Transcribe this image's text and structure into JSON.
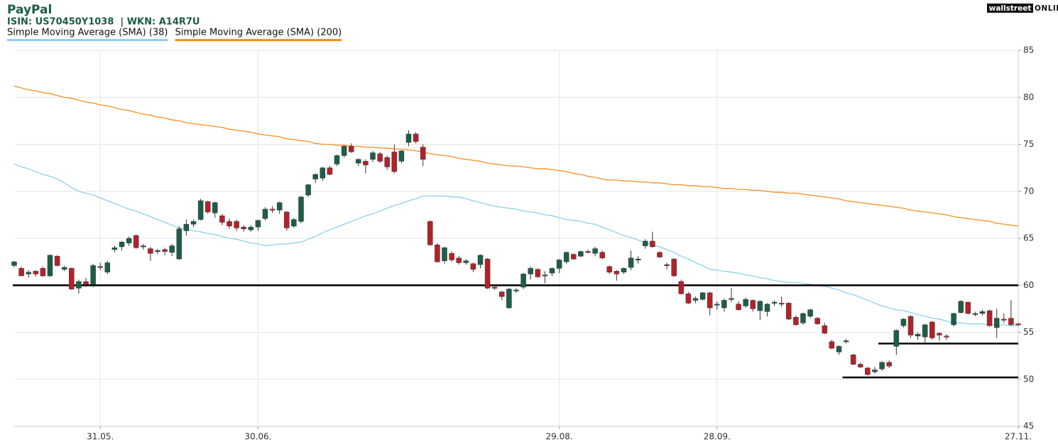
{
  "chart_data": {
    "type": "candlestick",
    "title": "PayPal",
    "subtitle": "ISIN: US70450Y1038  | WKN: A14R7U",
    "logo": {
      "brand": "wallstreet",
      "suffix": "ONLINE"
    },
    "grid": true,
    "y_axis_side": "right",
    "ylim": [
      45,
      85
    ],
    "yticks": [
      45,
      50,
      55,
      60,
      65,
      70,
      75,
      80,
      85
    ],
    "categories": [
      null,
      null,
      null,
      null,
      null,
      null,
      null,
      null,
      null,
      null,
      null,
      null,
      "31.05.",
      null,
      null,
      null,
      null,
      null,
      null,
      null,
      null,
      null,
      null,
      null,
      null,
      null,
      null,
      null,
      null,
      null,
      null,
      null,
      null,
      null,
      "30.06.",
      null,
      null,
      null,
      null,
      null,
      null,
      null,
      null,
      null,
      null,
      null,
      null,
      null,
      null,
      null,
      null,
      null,
      null,
      null,
      null,
      null,
      null,
      null,
      null,
      null,
      null,
      null,
      null,
      null,
      null,
      null,
      null,
      null,
      null,
      null,
      null,
      null,
      null,
      null,
      null,
      null,
      "29.08.",
      null,
      null,
      null,
      null,
      null,
      null,
      null,
      null,
      null,
      null,
      null,
      null,
      null,
      null,
      null,
      null,
      null,
      null,
      null,
      null,
      null,
      "28.09.",
      null,
      null,
      null,
      null,
      null,
      null,
      null,
      null,
      null,
      null,
      null,
      null,
      null,
      null,
      null,
      null,
      null,
      null,
      null,
      null,
      null,
      null,
      null,
      null,
      null,
      null,
      null,
      null,
      null,
      null,
      null,
      null,
      null,
      null,
      null,
      null,
      null,
      null,
      null,
      null,
      null,
      "27.11."
    ],
    "series": [
      {
        "type": "candlestick",
        "up_color": "#1d5e49",
        "down_color": "#b3222a",
        "open": [
          62.1,
          61.8,
          61.2,
          61.5,
          61.8,
          61.0,
          63.1,
          61.7,
          61.8,
          59.7,
          60.4,
          60.1,
          62.0,
          61.4,
          63.8,
          64.1,
          64.5,
          65.3,
          64.1,
          63.9,
          63.6,
          63.8,
          63.5,
          62.8,
          65.8,
          66.5,
          67.0,
          68.9,
          67.7,
          67.4,
          66.8,
          66.8,
          66.2,
          65.9,
          66.2,
          67.1,
          68.1,
          68.0,
          67.8,
          66.3,
          66.8,
          69.6,
          71.3,
          71.4,
          72.5,
          72.9,
          73.8,
          74.8,
          73.0,
          73.2,
          73.4,
          74.0,
          73.6,
          74.2,
          73.2,
          75.2,
          76.1,
          74.7,
          66.8,
          64.3,
          62.6,
          63.4,
          62.9,
          62.4,
          62.3,
          62.2,
          62.8,
          59.8,
          59.3,
          57.6,
          59.4,
          59.8,
          61.2,
          61.7,
          61.0,
          61.3,
          61.8,
          62.5,
          63.3,
          63.1,
          63.6,
          63.4,
          63.5,
          62.0,
          61.5,
          61.4,
          61.9,
          62.7,
          64.2,
          64.7,
          63.5,
          62.2,
          62.8,
          60.4,
          59.1,
          58.4,
          58.5,
          59.2,
          57.9,
          57.6,
          58.6,
          58.0,
          57.8,
          58.4,
          57.3,
          57.2,
          58.1,
          58.1,
          58.1,
          56.6,
          56.0,
          56.7,
          56.5,
          55.7,
          54.0,
          52.9,
          54.0,
          52.6,
          51.6,
          51.2,
          50.8,
          51.1,
          51.8,
          53.5,
          55.7,
          56.7,
          54.6,
          54.5,
          56.1,
          54.9,
          54.6,
          55.8,
          57.1,
          58.2,
          56.9,
          57.0,
          57.3,
          55.5,
          56.4,
          56.5,
          55.9
        ],
        "high": [
          62.6,
          62.0,
          61.6,
          61.6,
          62.0,
          63.3,
          63.2,
          62.1,
          61.9,
          60.6,
          60.8,
          62.3,
          62.4,
          62.6,
          64.2,
          64.7,
          65.2,
          65.4,
          64.4,
          64.1,
          63.9,
          64.0,
          64.4,
          66.3,
          67.0,
          67.0,
          69.2,
          69.0,
          68.9,
          67.6,
          67.1,
          67.0,
          66.4,
          66.4,
          67.0,
          68.3,
          68.4,
          68.9,
          67.9,
          67.2,
          69.5,
          70.8,
          71.9,
          72.6,
          72.7,
          73.9,
          74.9,
          75.1,
          73.5,
          73.4,
          74.3,
          74.2,
          73.8,
          75.0,
          74.4,
          76.5,
          76.3,
          75.0,
          66.9,
          64.5,
          64.1,
          63.6,
          63.1,
          62.8,
          62.4,
          63.3,
          62.9,
          60.0,
          59.4,
          59.7,
          59.7,
          61.3,
          62.0,
          61.8,
          61.5,
          61.9,
          62.8,
          63.6,
          63.4,
          63.7,
          63.8,
          64.1,
          63.7,
          62.1,
          61.6,
          61.9,
          63.7,
          63.1,
          64.9,
          65.7,
          63.6,
          62.4,
          62.9,
          60.6,
          59.3,
          58.8,
          59.3,
          59.3,
          58.3,
          58.6,
          59.7,
          58.3,
          58.7,
          58.5,
          58.4,
          58.1,
          58.4,
          58.8,
          58.2,
          56.8,
          57.1,
          57.5,
          56.6,
          56.0,
          54.2,
          53.6,
          54.3,
          52.7,
          51.8,
          51.3,
          51.3,
          51.9,
          52.0,
          55.3,
          56.5,
          56.8,
          55.0,
          55.9,
          56.2,
          55.0,
          54.8,
          57.1,
          58.4,
          58.3,
          57.2,
          57.4,
          57.4,
          57.5,
          57.0,
          58.4,
          56.0
        ],
        "low": [
          61.9,
          61.0,
          60.8,
          60.9,
          60.9,
          60.9,
          62.0,
          61.5,
          59.5,
          59.1,
          59.8,
          59.8,
          61.6,
          61.2,
          63.5,
          63.7,
          64.2,
          63.9,
          63.8,
          62.6,
          63.3,
          63.2,
          63.1,
          62.7,
          65.3,
          66.2,
          66.9,
          67.6,
          67.2,
          66.4,
          66.0,
          65.8,
          65.7,
          65.7,
          65.8,
          66.9,
          67.7,
          67.6,
          65.8,
          66.1,
          66.6,
          69.4,
          70.9,
          71.1,
          71.7,
          72.7,
          73.6,
          74.1,
          72.7,
          71.9,
          73.1,
          73.0,
          72.3,
          71.9,
          73.0,
          74.8,
          75.1,
          72.7,
          64.2,
          62.4,
          62.3,
          62.5,
          62.2,
          62.2,
          61.4,
          61.8,
          59.6,
          59.5,
          58.4,
          57.5,
          59.2,
          59.6,
          60.6,
          60.8,
          60.2,
          61.0,
          61.3,
          62.3,
          62.7,
          63.0,
          63.4,
          63.1,
          62.8,
          61.2,
          60.5,
          61.2,
          61.6,
          62.3,
          63.9,
          64.0,
          62.9,
          61.7,
          60.9,
          59.0,
          58.0,
          58.1,
          58.4,
          56.8,
          57.4,
          57.2,
          58.2,
          57.3,
          57.6,
          57.2,
          56.3,
          56.7,
          57.8,
          57.7,
          56.3,
          55.7,
          55.8,
          56.5,
          55.8,
          54.8,
          53.2,
          52.6,
          53.8,
          51.5,
          51.2,
          50.4,
          50.6,
          50.9,
          51.2,
          52.6,
          55.5,
          54.4,
          54.2,
          53.8,
          54.2,
          54.1,
          54.2,
          55.6,
          57.0,
          56.9,
          56.7,
          56.8,
          55.6,
          54.4,
          56.0,
          55.7,
          55.7
        ],
        "close": [
          62.5,
          61.0,
          61.4,
          61.2,
          61.0,
          63.2,
          62.1,
          61.9,
          59.6,
          60.4,
          60.1,
          62.1,
          61.9,
          62.4,
          64.0,
          64.6,
          65.0,
          64.0,
          64.2,
          63.4,
          63.7,
          63.6,
          64.2,
          66.0,
          66.5,
          66.8,
          69.0,
          67.8,
          68.8,
          66.7,
          66.3,
          66.1,
          66.0,
          66.2,
          66.9,
          68.1,
          68.0,
          68.8,
          66.1,
          67.0,
          69.4,
          70.7,
          71.8,
          72.5,
          71.8,
          73.8,
          74.8,
          74.2,
          73.4,
          72.8,
          74.1,
          73.2,
          72.6,
          72.1,
          74.3,
          76.1,
          75.3,
          73.4,
          64.3,
          62.5,
          64.0,
          62.7,
          62.4,
          62.6,
          61.7,
          63.2,
          59.7,
          59.7,
          58.8,
          59.6,
          59.5,
          61.2,
          61.8,
          60.9,
          61.1,
          61.8,
          62.7,
          63.5,
          62.8,
          63.6,
          63.5,
          63.9,
          62.9,
          61.4,
          61.2,
          61.8,
          62.9,
          62.8,
          64.7,
          64.1,
          63.0,
          62.1,
          61.0,
          59.1,
          58.1,
          58.6,
          59.2,
          57.6,
          58.0,
          58.4,
          58.6,
          57.4,
          58.5,
          57.5,
          58.3,
          58.0,
          58.2,
          58.0,
          56.4,
          55.8,
          57.0,
          57.4,
          55.9,
          54.9,
          53.3,
          53.5,
          54.1,
          51.6,
          51.3,
          50.5,
          51.0,
          51.8,
          51.4,
          55.2,
          56.4,
          54.7,
          54.8,
          55.8,
          54.4,
          54.7,
          54.5,
          57.0,
          58.3,
          57.0,
          57.0,
          57.2,
          55.7,
          56.5,
          56.3,
          55.8,
          55.8
        ]
      },
      {
        "type": "line",
        "name": "Simple Moving Average (SMA) (38)",
        "color": "#8fcfea",
        "values": [
          72.9,
          72.6,
          72.4,
          72.1,
          71.8,
          71.6,
          71.3,
          70.9,
          70.4,
          70.0,
          69.8,
          69.6,
          69.3,
          69.0,
          68.7,
          68.4,
          68.1,
          67.9,
          67.6,
          67.3,
          67.0,
          66.7,
          66.4,
          66.1,
          66.0,
          65.8,
          65.7,
          65.5,
          65.4,
          65.2,
          65.0,
          64.9,
          64.7,
          64.5,
          64.4,
          64.2,
          64.3,
          64.4,
          64.4,
          64.5,
          64.6,
          64.9,
          65.2,
          65.6,
          65.9,
          66.2,
          66.5,
          66.8,
          67.1,
          67.4,
          67.6,
          67.9,
          68.2,
          68.5,
          68.7,
          69.0,
          69.2,
          69.5,
          69.5,
          69.5,
          69.5,
          69.4,
          69.4,
          69.2,
          69.0,
          68.8,
          68.6,
          68.4,
          68.3,
          68.2,
          68.1,
          67.9,
          67.8,
          67.7,
          67.5,
          67.4,
          67.2,
          67.0,
          66.9,
          66.8,
          66.6,
          66.5,
          66.2,
          65.9,
          65.6,
          65.3,
          65.1,
          64.8,
          64.6,
          64.3,
          64.1,
          63.8,
          63.5,
          63.1,
          62.8,
          62.4,
          62.1,
          61.7,
          61.6,
          61.5,
          61.4,
          61.3,
          61.1,
          61.0,
          60.8,
          60.7,
          60.5,
          60.4,
          60.3,
          60.3,
          60.2,
          60.1,
          60.0,
          59.9,
          59.7,
          59.5,
          59.2,
          59.0,
          58.7,
          58.4,
          58.1,
          57.8,
          57.6,
          57.4,
          57.3,
          57.1,
          56.9,
          56.7,
          56.5,
          56.4,
          56.2,
          56.0,
          56.0,
          55.9,
          55.9,
          55.9,
          55.8,
          55.8,
          55.8,
          55.7,
          55.7
        ]
      },
      {
        "type": "line",
        "name": "Simple Moving Average (SMA) (200)",
        "color": "#f7901e",
        "values": [
          81.2,
          81.0,
          80.8,
          80.7,
          80.5,
          80.4,
          80.2,
          80.0,
          79.9,
          79.7,
          79.5,
          79.4,
          79.2,
          79.1,
          78.9,
          78.7,
          78.6,
          78.4,
          78.2,
          78.1,
          77.9,
          77.8,
          77.6,
          77.5,
          77.3,
          77.2,
          77.1,
          77.0,
          76.9,
          76.8,
          76.6,
          76.5,
          76.4,
          76.3,
          76.1,
          76.0,
          75.9,
          75.8,
          75.6,
          75.5,
          75.4,
          75.3,
          75.1,
          75.0,
          75.0,
          74.9,
          74.9,
          74.8,
          74.8,
          74.7,
          74.7,
          74.6,
          74.6,
          74.5,
          74.5,
          74.4,
          74.3,
          74.2,
          74.0,
          73.9,
          73.8,
          73.7,
          73.5,
          73.4,
          73.3,
          73.2,
          73.0,
          72.9,
          72.8,
          72.7,
          72.7,
          72.6,
          72.5,
          72.4,
          72.4,
          72.3,
          72.2,
          72.1,
          71.9,
          71.8,
          71.6,
          71.5,
          71.3,
          71.2,
          71.2,
          71.1,
          71.1,
          71.0,
          71.0,
          70.9,
          70.9,
          70.8,
          70.7,
          70.7,
          70.6,
          70.6,
          70.5,
          70.5,
          70.4,
          70.3,
          70.3,
          70.2,
          70.2,
          70.1,
          70.1,
          70.0,
          69.9,
          69.9,
          69.8,
          69.8,
          69.7,
          69.6,
          69.5,
          69.4,
          69.3,
          69.2,
          69.0,
          68.9,
          68.8,
          68.7,
          68.6,
          68.5,
          68.4,
          68.3,
          68.2,
          68.0,
          67.9,
          67.8,
          67.7,
          67.6,
          67.5,
          67.3,
          67.2,
          67.1,
          67.0,
          66.9,
          66.8,
          66.6,
          66.5,
          66.4,
          66.3
        ]
      }
    ],
    "hlines": [
      {
        "value": 60,
        "from": 0,
        "color": "#000000"
      },
      {
        "value": 53.8,
        "from": 121,
        "color": "#000000"
      },
      {
        "value": 50.2,
        "from": 116,
        "color": "#000000"
      }
    ]
  }
}
